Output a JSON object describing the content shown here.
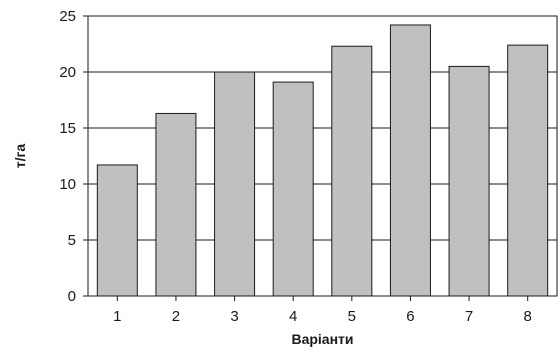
{
  "chart_data": {
    "type": "bar",
    "title": "",
    "xlabel": "Варіанти",
    "ylabel": "т/га",
    "categories": [
      "1",
      "2",
      "3",
      "4",
      "5",
      "6",
      "7",
      "8"
    ],
    "values": [
      11.7,
      16.3,
      20.0,
      19.1,
      22.3,
      24.2,
      20.5,
      22.4
    ],
    "ylim": [
      0,
      25
    ],
    "yticks": [
      0,
      5,
      10,
      15,
      20,
      25
    ],
    "grid": true,
    "legend": "none",
    "bar_color": "#c0c0c2",
    "bar_edge_color": "#1a1a1a",
    "grid_color": "#1a1a1a"
  }
}
